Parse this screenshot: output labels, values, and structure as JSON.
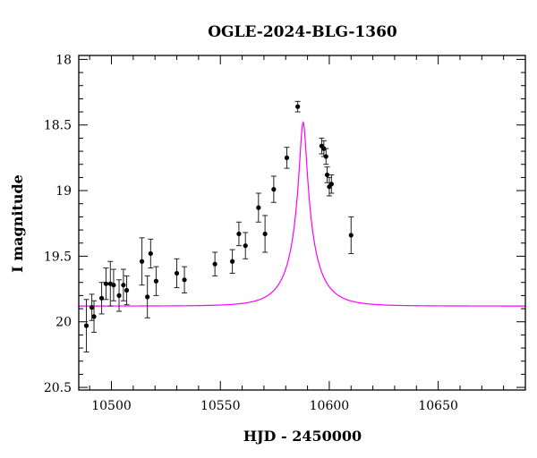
{
  "chart_data": {
    "type": "scatter",
    "title": "OGLE-2024-BLG-1360",
    "xlabel": "HJD - 2450000",
    "ylabel": "I magnitude",
    "xlim": [
      10485,
      10690
    ],
    "ylim": [
      20.52,
      17.97
    ],
    "y_inverted": true,
    "grid": false,
    "x_ticks": [
      10500,
      10550,
      10600,
      10650
    ],
    "y_ticks": [
      18,
      18.5,
      19,
      19.5,
      20,
      20.5
    ],
    "x_tick_labels": [
      "10500",
      "10550",
      "10600",
      "10650"
    ],
    "y_tick_labels": [
      "18",
      "18.5",
      "19",
      "19.5",
      "20",
      "20.5"
    ],
    "model_color": "#ff00ff",
    "point_color": "#000000",
    "model": {
      "t0": 10588,
      "tE": 13.5,
      "u0": 0.115,
      "baseline": 19.88,
      "fs": 0.34
    },
    "points": [
      {
        "x": 10488.5,
        "y": 20.03,
        "err": 0.2
      },
      {
        "x": 10491.0,
        "y": 19.89,
        "err": 0.1
      },
      {
        "x": 10492.0,
        "y": 19.96,
        "err": 0.12
      },
      {
        "x": 10495.5,
        "y": 19.82,
        "err": 0.12
      },
      {
        "x": 10497.5,
        "y": 19.71,
        "err": 0.12
      },
      {
        "x": 10499.5,
        "y": 19.71,
        "err": 0.17
      },
      {
        "x": 10501.0,
        "y": 19.72,
        "err": 0.12
      },
      {
        "x": 10503.5,
        "y": 19.8,
        "err": 0.12
      },
      {
        "x": 10505.5,
        "y": 19.72,
        "err": 0.12
      },
      {
        "x": 10507.0,
        "y": 19.76,
        "err": 0.11
      },
      {
        "x": 10514.0,
        "y": 19.54,
        "err": 0.18
      },
      {
        "x": 10516.5,
        "y": 19.81,
        "err": 0.16
      },
      {
        "x": 10518.0,
        "y": 19.48,
        "err": 0.11
      },
      {
        "x": 10520.5,
        "y": 19.69,
        "err": 0.11
      },
      {
        "x": 10530.0,
        "y": 19.63,
        "err": 0.11
      },
      {
        "x": 10533.5,
        "y": 19.68,
        "err": 0.1
      },
      {
        "x": 10547.5,
        "y": 19.56,
        "err": 0.09
      },
      {
        "x": 10555.5,
        "y": 19.54,
        "err": 0.09
      },
      {
        "x": 10558.5,
        "y": 19.33,
        "err": 0.09
      },
      {
        "x": 10561.5,
        "y": 19.42,
        "err": 0.1
      },
      {
        "x": 10567.5,
        "y": 19.13,
        "err": 0.11
      },
      {
        "x": 10570.5,
        "y": 19.33,
        "err": 0.14
      },
      {
        "x": 10574.5,
        "y": 18.99,
        "err": 0.1
      },
      {
        "x": 10580.5,
        "y": 18.75,
        "err": 0.08
      },
      {
        "x": 10585.5,
        "y": 18.36,
        "err": 0.04
      },
      {
        "x": 10596.5,
        "y": 18.66,
        "err": 0.06
      },
      {
        "x": 10597.5,
        "y": 18.68,
        "err": 0.06
      },
      {
        "x": 10598.5,
        "y": 18.74,
        "err": 0.06
      },
      {
        "x": 10599.0,
        "y": 18.88,
        "err": 0.06
      },
      {
        "x": 10600.0,
        "y": 18.97,
        "err": 0.07
      },
      {
        "x": 10601.0,
        "y": 18.95,
        "err": 0.07
      },
      {
        "x": 10610.0,
        "y": 19.34,
        "err": 0.14
      }
    ]
  }
}
